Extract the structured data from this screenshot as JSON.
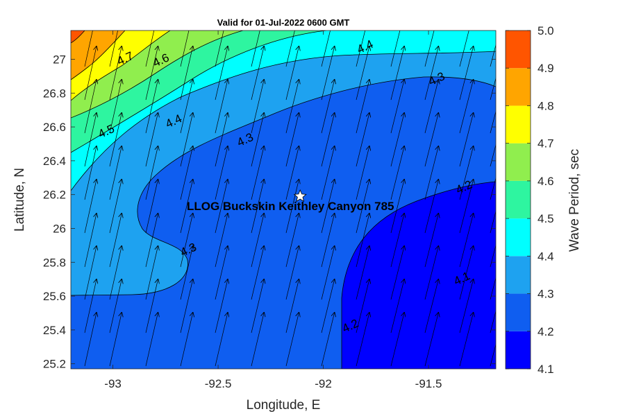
{
  "chart_data": {
    "type": "contour",
    "title": "Valid for 01-Jul-2022 0600 GMT",
    "xlabel": "Longitude, E",
    "ylabel": "Latitude, N",
    "xlim": [
      -93.2,
      -91.18
    ],
    "ylim": [
      25.17,
      27.17
    ],
    "x_ticks": [
      -93,
      -92.5,
      -92,
      -91.5
    ],
    "y_ticks": [
      25.2,
      25.4,
      25.6,
      25.8,
      26,
      26.2,
      26.4,
      26.6,
      26.8,
      27
    ],
    "x_tick_labels": [
      "-93",
      "-92.5",
      "-92",
      "-91.5"
    ],
    "y_tick_labels": [
      "25.2",
      "25.4",
      "25.6",
      "25.8",
      "26",
      "26.2",
      "26.4",
      "26.6",
      "26.8",
      "27"
    ],
    "colorbar": {
      "label": "Wave Period, sec",
      "levels": [
        4.1,
        4.2,
        4.3,
        4.4,
        4.5,
        4.6,
        4.7,
        4.8,
        4.9,
        5.0
      ],
      "tick_labels": [
        "4.1",
        "4.2",
        "4.3",
        "4.4",
        "4.5",
        "4.6",
        "4.7",
        "4.8",
        "4.9",
        "5.0"
      ],
      "colors": [
        "#0000ff",
        "#0f5ef0",
        "#1ea2f0",
        "#00ffff",
        "#2ef5a0",
        "#90ee4e",
        "#ffff00",
        "#ffa500",
        "#ff5500"
      ]
    },
    "contour_labels": [
      {
        "text": "4.7",
        "lon": -92.94,
        "lat": 27.0
      },
      {
        "text": "4.6",
        "lon": -92.77,
        "lat": 26.99
      },
      {
        "text": "4.4",
        "lon": -91.8,
        "lat": 27.07
      },
      {
        "text": "4.3",
        "lon": -91.46,
        "lat": 26.88
      },
      {
        "text": "4.5",
        "lon": -93.03,
        "lat": 26.57
      },
      {
        "text": "4.4",
        "lon": -92.71,
        "lat": 26.63
      },
      {
        "text": "4.3",
        "lon": -92.37,
        "lat": 26.52
      },
      {
        "text": "4.2",
        "lon": -91.33,
        "lat": 26.24
      },
      {
        "text": "4.3",
        "lon": -92.64,
        "lat": 25.87
      },
      {
        "text": "4.1",
        "lon": -91.34,
        "lat": 25.7
      },
      {
        "text": "4.2",
        "lon": -91.87,
        "lat": 25.42
      }
    ],
    "site": {
      "name": "LLOG Buckskin Keithley Canyon 785",
      "lon": -92.11,
      "lat": 26.19
    }
  }
}
